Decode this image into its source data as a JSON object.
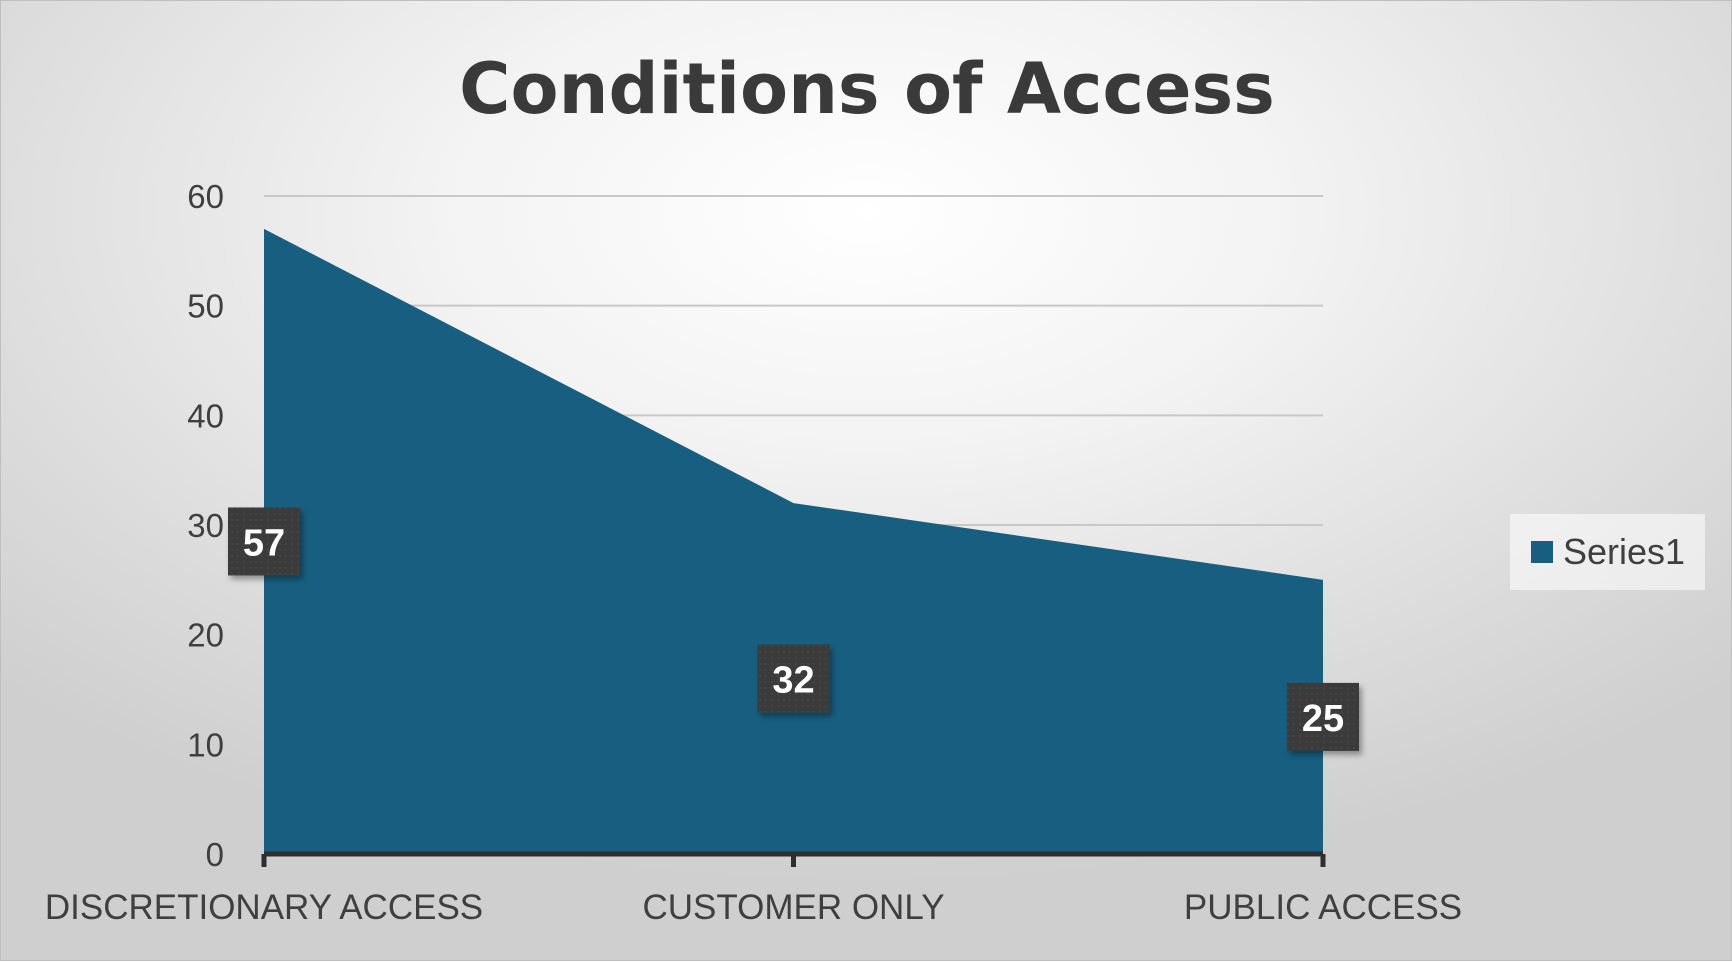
{
  "chart_data": {
    "type": "area",
    "title": "Conditions of Access",
    "categories": [
      "DISCRETIONARY ACCESS",
      "CUSTOMER ONLY",
      "PUBLIC ACCESS"
    ],
    "series": [
      {
        "name": "Series1",
        "values": [
          57,
          32,
          25
        ]
      }
    ],
    "ylim": [
      0,
      60
    ],
    "yticks": [
      "0",
      "10",
      "20",
      "30",
      "40",
      "50",
      "60"
    ],
    "grid": true,
    "legend_position": "right",
    "colors": {
      "series_fill": "#175e80",
      "data_label_bg": "#3b3b3b",
      "gridline": "#c8c8c8",
      "axis": "#2f2f2f"
    }
  }
}
